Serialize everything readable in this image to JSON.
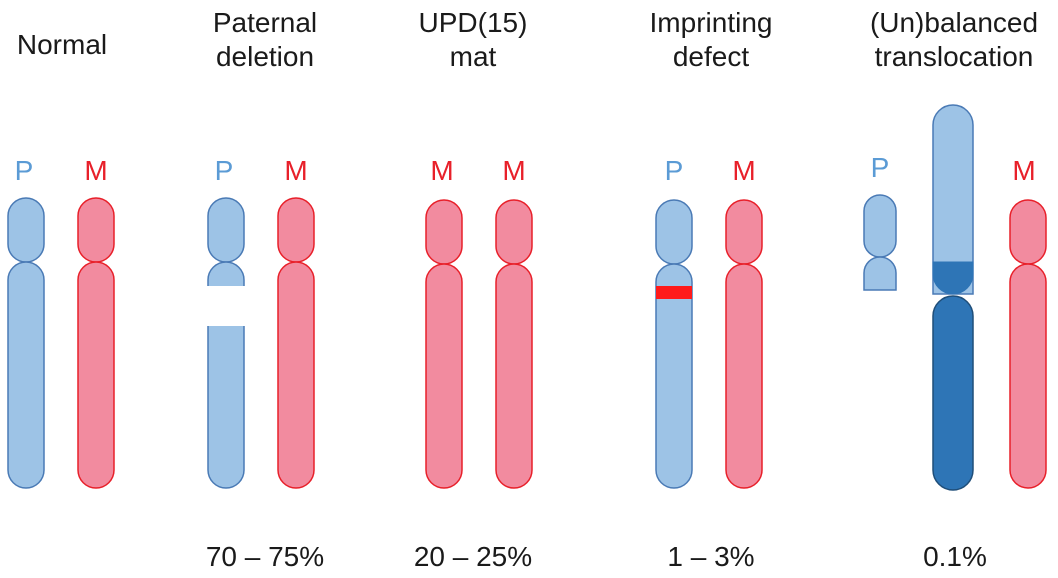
{
  "columns": [
    {
      "heading": [
        "Normal"
      ],
      "labels": [
        "P",
        "M"
      ],
      "frequency": ""
    },
    {
      "heading": [
        "Paternal",
        "deletion"
      ],
      "labels": [
        "P",
        "M"
      ],
      "frequency": "70 – 75%"
    },
    {
      "heading": [
        "UPD(15)",
        "mat"
      ],
      "labels": [
        "M",
        "M"
      ],
      "frequency": "20 – 25%"
    },
    {
      "heading": [
        "Imprinting",
        "defect"
      ],
      "labels": [
        "P",
        "M"
      ],
      "frequency": "1 – 3%"
    },
    {
      "heading": [
        "(Un)balanced",
        "translocation"
      ],
      "labels": [
        "P",
        "M"
      ],
      "frequency": "0.1%"
    }
  ],
  "colors": {
    "paternal_fill": "#9dc3e6",
    "paternal_stroke": "#4a7ab5",
    "maternal_fill": "#f28b9f",
    "maternal_stroke": "#e8202a",
    "translocated_dark": "#2e75b6",
    "imprint_mark": "#ff1a1a",
    "paternal_label": "#5b9bd5",
    "maternal_label": "#e8202a"
  }
}
